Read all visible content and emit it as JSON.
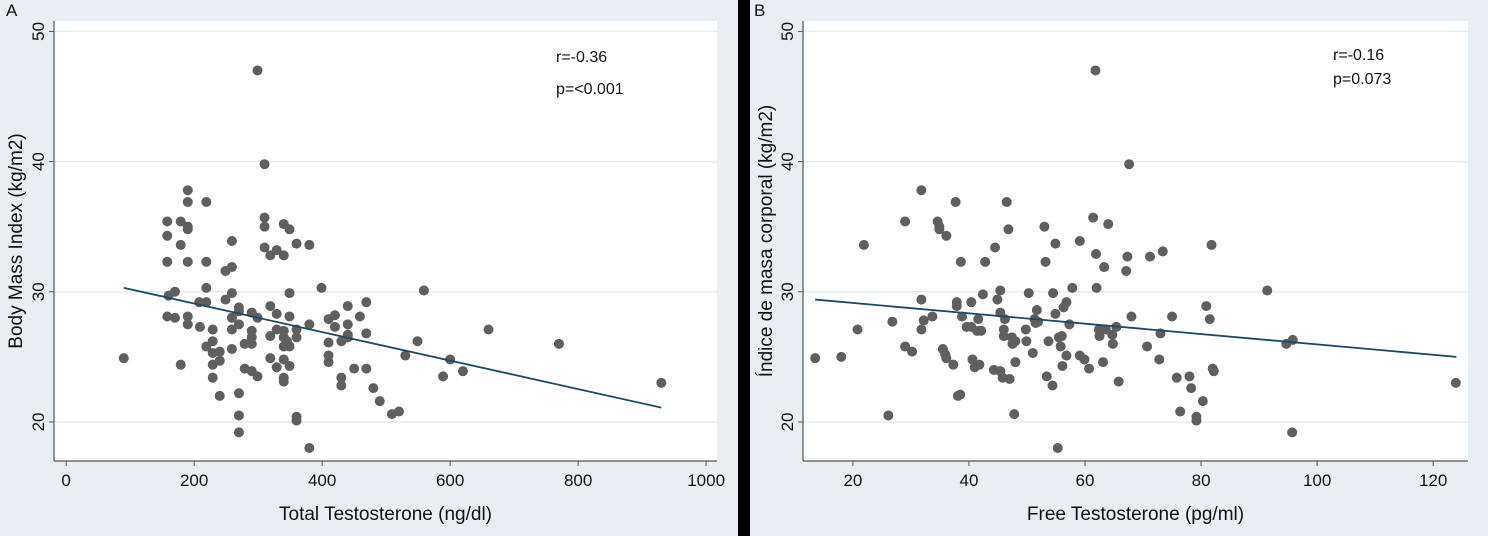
{
  "chart_data": [
    {
      "type": "scatter",
      "panel_label": "A",
      "xlabel": "Total Testosterone (ng/dl)",
      "ylabel": "Body Mass Index (kg/m2)",
      "xlim": [
        -19,
        1017
      ],
      "ylim": [
        17,
        50.8
      ],
      "xticks": [
        0,
        200,
        400,
        600,
        800,
        1000
      ],
      "yticks": [
        20,
        30,
        40,
        50
      ],
      "grid": "horizontal",
      "annotations": [
        "r=-0.36",
        "p=<0.001"
      ],
      "fit_line": [
        [
          90,
          30.3
        ],
        [
          930,
          21.1
        ]
      ],
      "points": [
        [
          90,
          24.9
        ],
        [
          158,
          35.4
        ],
        [
          158,
          34.3
        ],
        [
          158,
          32.3
        ],
        [
          160,
          29.7
        ],
        [
          158,
          28.1
        ],
        [
          170,
          30.0
        ],
        [
          170,
          28.0
        ],
        [
          179,
          35.4
        ],
        [
          179,
          33.6
        ],
        [
          179,
          24.4
        ],
        [
          190,
          37.8
        ],
        [
          190,
          36.9
        ],
        [
          190,
          35.0
        ],
        [
          190,
          34.8
        ],
        [
          190,
          32.3
        ],
        [
          190,
          28.1
        ],
        [
          190,
          27.5
        ],
        [
          208,
          29.2
        ],
        [
          209,
          27.3
        ],
        [
          219,
          36.9
        ],
        [
          219,
          32.3
        ],
        [
          219,
          30.3
        ],
        [
          219,
          29.2
        ],
        [
          219,
          25.8
        ],
        [
          229,
          27.1
        ],
        [
          229,
          26.2
        ],
        [
          229,
          25.3
        ],
        [
          229,
          24.4
        ],
        [
          229,
          23.4
        ],
        [
          240,
          25.4
        ],
        [
          240,
          24.7
        ],
        [
          240,
          22.0
        ],
        [
          249,
          31.6
        ],
        [
          249,
          29.4
        ],
        [
          259,
          33.9
        ],
        [
          259,
          31.9
        ],
        [
          259,
          29.9
        ],
        [
          259,
          28.0
        ],
        [
          259,
          27.1
        ],
        [
          259,
          25.6
        ],
        [
          270,
          28.8
        ],
        [
          270,
          28.5
        ],
        [
          270,
          27.5
        ],
        [
          270,
          22.2
        ],
        [
          270,
          20.5
        ],
        [
          270,
          19.2
        ],
        [
          279,
          26.0
        ],
        [
          279,
          24.1
        ],
        [
          290,
          28.4
        ],
        [
          290,
          27.0
        ],
        [
          290,
          26.5
        ],
        [
          290,
          26.0
        ],
        [
          290,
          23.9
        ],
        [
          299,
          47.0
        ],
        [
          299,
          28.0
        ],
        [
          299,
          23.5
        ],
        [
          310,
          39.8
        ],
        [
          310,
          35.7
        ],
        [
          310,
          35.0
        ],
        [
          310,
          33.4
        ],
        [
          319,
          32.8
        ],
        [
          319,
          28.9
        ],
        [
          319,
          26.6
        ],
        [
          319,
          24.9
        ],
        [
          329,
          33.2
        ],
        [
          329,
          28.3
        ],
        [
          329,
          27.1
        ],
        [
          329,
          24.2
        ],
        [
          340,
          35.2
        ],
        [
          340,
          32.8
        ],
        [
          340,
          27.0
        ],
        [
          340,
          26.5
        ],
        [
          340,
          25.8
        ],
        [
          340,
          24.8
        ],
        [
          340,
          23.4
        ],
        [
          340,
          23.1
        ],
        [
          349,
          34.8
        ],
        [
          349,
          29.9
        ],
        [
          349,
          28.1
        ],
        [
          349,
          25.8
        ],
        [
          349,
          24.3
        ],
        [
          345,
          26.2
        ],
        [
          360,
          33.7
        ],
        [
          360,
          27.1
        ],
        [
          360,
          26.5
        ],
        [
          360,
          20.4
        ],
        [
          360,
          20.1
        ],
        [
          380,
          33.6
        ],
        [
          380,
          27.5
        ],
        [
          380,
          18.0
        ],
        [
          399,
          30.3
        ],
        [
          410,
          27.9
        ],
        [
          410,
          26.1
        ],
        [
          410,
          25.1
        ],
        [
          410,
          24.6
        ],
        [
          420,
          28.2
        ],
        [
          420,
          27.3
        ],
        [
          430,
          26.2
        ],
        [
          430,
          23.4
        ],
        [
          430,
          22.8
        ],
        [
          440,
          28.9
        ],
        [
          440,
          27.5
        ],
        [
          440,
          26.7
        ],
        [
          440,
          26.5
        ],
        [
          450,
          24.1
        ],
        [
          459,
          28.1
        ],
        [
          469,
          29.2
        ],
        [
          469,
          26.8
        ],
        [
          469,
          24.1
        ],
        [
          480,
          22.6
        ],
        [
          490,
          21.6
        ],
        [
          509,
          20.6
        ],
        [
          520,
          20.8
        ],
        [
          530,
          25.1
        ],
        [
          549,
          26.2
        ],
        [
          559,
          30.1
        ],
        [
          589,
          23.5
        ],
        [
          600,
          24.8
        ],
        [
          620,
          23.9
        ],
        [
          660,
          27.1
        ],
        [
          770,
          26.0
        ],
        [
          930,
          23.0
        ]
      ]
    },
    {
      "type": "scatter",
      "panel_label": "B",
      "xlabel": "Free Testosterone (pg/ml)",
      "ylabel": "Índice de masa corporal (kg/m2)",
      "xlim": [
        11.4,
        126
      ],
      "ylim": [
        17,
        50.8
      ],
      "xticks": [
        20,
        40,
        60,
        80,
        100,
        120
      ],
      "yticks": [
        20,
        30,
        40,
        50
      ],
      "grid": "horizontal",
      "annotations": [
        "r=-0.16",
        "p=0.073"
      ],
      "fit_line": [
        [
          13.5,
          29.4
        ],
        [
          124,
          25.0
        ]
      ],
      "points": [
        [
          13.5,
          24.9
        ],
        [
          18,
          25.0
        ],
        [
          20.8,
          27.1
        ],
        [
          21.9,
          33.6
        ],
        [
          26.1,
          20.5
        ],
        [
          26.8,
          27.7
        ],
        [
          29.0,
          35.4
        ],
        [
          29.0,
          25.8
        ],
        [
          30.2,
          25.4
        ],
        [
          31.8,
          37.8
        ],
        [
          31.8,
          29.4
        ],
        [
          31.8,
          27.1
        ],
        [
          32.2,
          27.8
        ],
        [
          33.7,
          28.1
        ],
        [
          34.6,
          35.4
        ],
        [
          34.9,
          35.0
        ],
        [
          34.9,
          34.8
        ],
        [
          35.5,
          25.6
        ],
        [
          35.9,
          25.2
        ],
        [
          36.1,
          34.3
        ],
        [
          36.1,
          24.9
        ],
        [
          37.3,
          24.4
        ],
        [
          37.7,
          36.9
        ],
        [
          37.9,
          29.2
        ],
        [
          37.9,
          28.9
        ],
        [
          38.1,
          22.0
        ],
        [
          38.5,
          22.1
        ],
        [
          38.6,
          32.3
        ],
        [
          38.8,
          28.1
        ],
        [
          39.6,
          27.3
        ],
        [
          40.4,
          29.2
        ],
        [
          40.4,
          27.3
        ],
        [
          40.6,
          24.8
        ],
        [
          41.0,
          24.2
        ],
        [
          41.4,
          27.0
        ],
        [
          41.6,
          27.9
        ],
        [
          41.8,
          24.4
        ],
        [
          42.1,
          27.0
        ],
        [
          42.4,
          29.8
        ],
        [
          42.8,
          32.3
        ],
        [
          44.5,
          33.4
        ],
        [
          44.3,
          24.0
        ],
        [
          44.9,
          29.4
        ],
        [
          45.4,
          30.1
        ],
        [
          45.4,
          28.4
        ],
        [
          45.4,
          23.9
        ],
        [
          45.8,
          23.4
        ],
        [
          46.0,
          27.1
        ],
        [
          46.0,
          26.6
        ],
        [
          46.2,
          27.9
        ],
        [
          46.5,
          36.9
        ],
        [
          46.8,
          34.8
        ],
        [
          47.0,
          23.3
        ],
        [
          47.4,
          26.5
        ],
        [
          47.5,
          26.0
        ],
        [
          47.8,
          20.6
        ],
        [
          48.0,
          24.6
        ],
        [
          48.0,
          26.2
        ],
        [
          49.8,
          27.1
        ],
        [
          49.9,
          26.2
        ],
        [
          50.3,
          29.9
        ],
        [
          51.0,
          25.3
        ],
        [
          51.3,
          27.9
        ],
        [
          51.5,
          27.6
        ],
        [
          51.7,
          28.6
        ],
        [
          51.9,
          27.7
        ],
        [
          53.0,
          35.0
        ],
        [
          53.2,
          32.3
        ],
        [
          53.4,
          23.5
        ],
        [
          53.7,
          26.2
        ],
        [
          54.4,
          22.8
        ],
        [
          54.5,
          29.9
        ],
        [
          54.9,
          33.7
        ],
        [
          54.9,
          28.3
        ],
        [
          55.3,
          18.0
        ],
        [
          55.5,
          26.5
        ],
        [
          55.8,
          25.8
        ],
        [
          56.0,
          26.6
        ],
        [
          56.1,
          24.3
        ],
        [
          56.3,
          28.8
        ],
        [
          56.8,
          29.2
        ],
        [
          56.8,
          25.1
        ],
        [
          57.3,
          27.5
        ],
        [
          57.8,
          30.3
        ],
        [
          59.1,
          33.9
        ],
        [
          59.1,
          25.1
        ],
        [
          59.9,
          24.8
        ],
        [
          60.7,
          24.1
        ],
        [
          61.4,
          35.7
        ],
        [
          61.8,
          47.0
        ],
        [
          61.9,
          32.9
        ],
        [
          62.0,
          30.3
        ],
        [
          62.4,
          27.1
        ],
        [
          62.5,
          26.6
        ],
        [
          63.1,
          24.6
        ],
        [
          63.3,
          31.9
        ],
        [
          63.6,
          27.1
        ],
        [
          64.0,
          35.2
        ],
        [
          64.7,
          26.7
        ],
        [
          64.8,
          26.0
        ],
        [
          65.4,
          27.3
        ],
        [
          65.8,
          23.1
        ],
        [
          67.1,
          31.6
        ],
        [
          67.3,
          32.7
        ],
        [
          67.6,
          39.8
        ],
        [
          68.0,
          28.1
        ],
        [
          70.7,
          25.8
        ],
        [
          71.2,
          32.7
        ],
        [
          72.8,
          24.8
        ],
        [
          73.0,
          26.8
        ],
        [
          73.4,
          33.1
        ],
        [
          75.0,
          28.1
        ],
        [
          75.8,
          23.4
        ],
        [
          76.4,
          20.8
        ],
        [
          78.0,
          23.5
        ],
        [
          78.3,
          22.6
        ],
        [
          79.2,
          20.4
        ],
        [
          79.2,
          20.1
        ],
        [
          80.3,
          21.6
        ],
        [
          80.9,
          28.9
        ],
        [
          81.5,
          27.9
        ],
        [
          81.8,
          33.6
        ],
        [
          82.0,
          24.1
        ],
        [
          82.2,
          23.9
        ],
        [
          91.4,
          30.1
        ],
        [
          94.7,
          26.0
        ],
        [
          95.7,
          19.2
        ],
        [
          95.8,
          26.3
        ],
        [
          123.9,
          23.0
        ]
      ]
    }
  ],
  "colors": {
    "point": "#5f5f5f",
    "fit_line": "#1d4866",
    "plot_bg": "#ffffff",
    "page_bg": "#e8eef1",
    "grid": "#e6edf0",
    "divider": "#000000"
  }
}
